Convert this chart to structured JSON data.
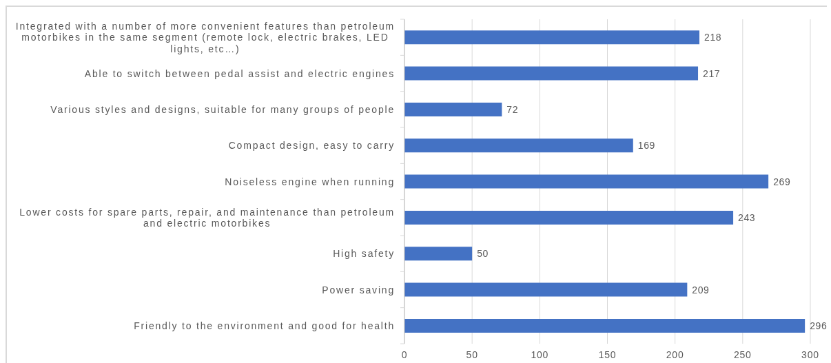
{
  "chart_data": {
    "type": "bar",
    "orientation": "horizontal",
    "categories": [
      "Integrated with a number of more convenient features than petroleum motorbikes in the same segment (remote lock, electric brakes, LED lights, etc…)",
      "Able to switch between pedal assist and electric engines",
      "Various styles and designs, suitable for many groups of people",
      "Compact design, easy to carry",
      "Noiseless engine when running",
      "Lower costs for spare parts, repair, and maintenance than petroleum and electric motorbikes",
      "High safety",
      "Power saving",
      "Friendly to the environment and good for health"
    ],
    "values": [
      218,
      217,
      72,
      169,
      269,
      243,
      50,
      209,
      296
    ],
    "color": "#4472c4",
    "xlim": [
      0,
      300
    ],
    "xticks": [
      0,
      50,
      100,
      150,
      200,
      250,
      300
    ],
    "grid": "x",
    "data_labels": true
  }
}
